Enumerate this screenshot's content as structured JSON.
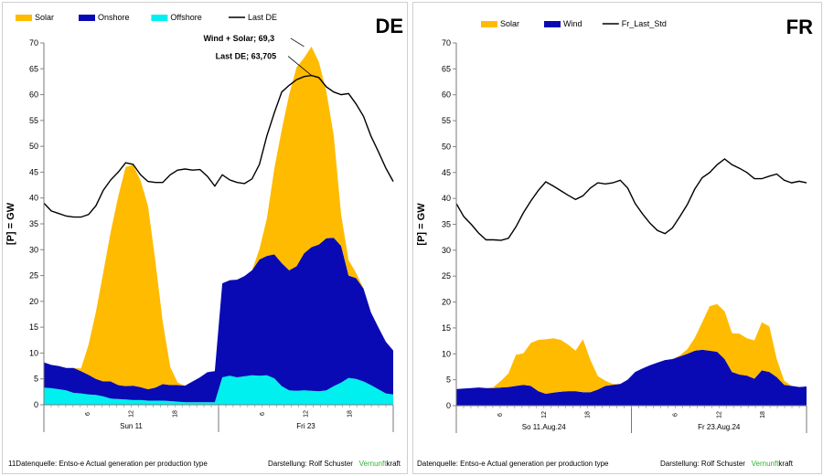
{
  "panels": {
    "de": {
      "country": "DE",
      "legend": [
        "Solar",
        "Onshore",
        "Offshore",
        "Last DE"
      ],
      "ylabel": "[P] = GW",
      "footer_source": "11Datenquelle: Entso-e  Actual generation per production type",
      "footer_credit": "Darstellung:  Rolf Schuster",
      "footer_brand_a": "Vernunft",
      "footer_brand_b": "kraft",
      "annotations": [
        "Wind + Solar; 69,3",
        "Last DE; 63,705"
      ]
    },
    "fr": {
      "country": "FR",
      "legend": [
        "Solar",
        "Wind",
        "Fr_Last_Std"
      ],
      "ylabel": "[P] = GW",
      "footer_source": "Datenquelle: Entso-e  Actual generation per production type",
      "footer_credit": "Darstellung:  Rolf Schuster",
      "footer_brand_a": "Vernunft",
      "footer_brand_b": "kraft"
    }
  },
  "colors": {
    "solar": "#ffbb00",
    "wind": "#0a0ab4",
    "offshore": "#00f0f0",
    "load": "#000000",
    "brand_green": "#2bb52b"
  },
  "chart_data": [
    {
      "type": "area",
      "title": "DE",
      "ylabel": "[P] = GW",
      "ylim": [
        0,
        70
      ],
      "yticks": [
        0,
        5,
        10,
        15,
        20,
        25,
        30,
        35,
        40,
        45,
        50,
        55,
        60,
        65,
        70
      ],
      "xtick_labels": [
        "6",
        "12",
        "18",
        "6",
        "12",
        "18"
      ],
      "day_labels": [
        "Sun 11",
        "Fri 23"
      ],
      "x": [
        0,
        1,
        2,
        3,
        4,
        5,
        6,
        7,
        8,
        9,
        10,
        11,
        12,
        13,
        14,
        15,
        16,
        17,
        18,
        19,
        20,
        21,
        22,
        23,
        24,
        25,
        26,
        27,
        28,
        29,
        30,
        31,
        32,
        33,
        34,
        35,
        36,
        37,
        38,
        39,
        40,
        41,
        42,
        43,
        44,
        45,
        46,
        47
      ],
      "stacked": true,
      "series": [
        {
          "name": "Offshore",
          "color": "#00f0f0",
          "values": [
            3.3,
            3.2,
            3.0,
            2.8,
            2.3,
            2.2,
            2.0,
            1.9,
            1.6,
            1.2,
            1.1,
            1.0,
            0.9,
            0.9,
            0.8,
            0.8,
            0.8,
            0.7,
            0.6,
            0.5,
            0.5,
            0.5,
            0.5,
            0.5,
            5.3,
            5.6,
            5.3,
            5.5,
            5.7,
            5.6,
            5.7,
            5.1,
            3.6,
            2.8,
            2.7,
            2.8,
            2.7,
            2.6,
            2.8,
            3.6,
            4.3,
            5.2,
            5.0,
            4.5,
            3.8,
            3.0,
            2.2,
            2.0
          ]
        },
        {
          "name": "Onshore",
          "color": "#0a0ab4",
          "values": [
            4.9,
            4.5,
            4.5,
            4.3,
            4.8,
            4.3,
            3.8,
            3.1,
            2.9,
            3.3,
            2.7,
            2.6,
            2.8,
            2.5,
            2.2,
            2.5,
            3.2,
            3.1,
            3.2,
            3.2,
            4.0,
            4.8,
            5.8,
            6.0,
            18.2,
            18.5,
            18.9,
            19.4,
            20.3,
            22.5,
            23.1,
            24.0,
            23.8,
            23.2,
            24.1,
            26.5,
            27.8,
            28.4,
            29.4,
            28.7,
            26.4,
            19.8,
            19.5,
            18.0,
            14.1,
            12.0,
            10.0,
            8.5
          ]
        },
        {
          "name": "Solar",
          "color": "#ffbb00",
          "values": [
            0,
            0,
            0,
            0,
            0,
            0.5,
            5.8,
            13.0,
            21.2,
            29.0,
            36.5,
            42.4,
            42.7,
            40.0,
            35.5,
            24.5,
            12.0,
            3.5,
            0.5,
            0,
            0,
            0,
            0,
            0,
            0,
            0,
            0,
            0,
            0,
            2.0,
            7.2,
            16.6,
            25.8,
            34.0,
            38.5,
            37.8,
            38.8,
            35.3,
            28.4,
            19.7,
            6.0,
            3.0,
            1.0,
            0,
            0,
            0,
            0,
            0
          ]
        }
      ],
      "lines": [
        {
          "name": "Last DE",
          "color": "#000000",
          "values": [
            39.0,
            37.5,
            37.0,
            36.5,
            36.3,
            36.3,
            36.8,
            38.5,
            41.5,
            43.5,
            45.0,
            46.8,
            46.5,
            44.5,
            43.2,
            43.0,
            43.0,
            44.5,
            45.4,
            45.6,
            45.4,
            45.5,
            44.2,
            42.3,
            44.5,
            43.5,
            43.0,
            42.8,
            43.7,
            46.5,
            52.0,
            56.5,
            60.5,
            61.8,
            62.9,
            63.5,
            63.7,
            63.3,
            61.5,
            60.5,
            60.0,
            60.2,
            58.2,
            55.8,
            52.0,
            49.0,
            45.8,
            43.2
          ]
        }
      ],
      "annotations": [
        {
          "text": "Wind + Solar; 69,3",
          "x": 35,
          "y": 69.3
        },
        {
          "text": "Last DE; 63,705",
          "x": 36,
          "y": 63.705
        }
      ]
    },
    {
      "type": "area",
      "title": "FR",
      "ylabel": "[P] = GW",
      "ylim": [
        0,
        70
      ],
      "yticks": [
        0,
        5,
        10,
        15,
        20,
        25,
        30,
        35,
        40,
        45,
        50,
        55,
        60,
        65,
        70
      ],
      "xtick_labels": [
        "6",
        "12",
        "18",
        "6",
        "12",
        "18"
      ],
      "day_labels": [
        "So 11.Aug.24",
        "Fr 23.Aug.24"
      ],
      "x": [
        0,
        1,
        2,
        3,
        4,
        5,
        6,
        7,
        8,
        9,
        10,
        11,
        12,
        13,
        14,
        15,
        16,
        17,
        18,
        19,
        20,
        21,
        22,
        23,
        24,
        25,
        26,
        27,
        28,
        29,
        30,
        31,
        32,
        33,
        34,
        35,
        36,
        37,
        38,
        39,
        40,
        41,
        42,
        43,
        44,
        45,
        46,
        47
      ],
      "stacked": true,
      "series": [
        {
          "name": "Wind",
          "color": "#0a0ab4",
          "values": [
            3.2,
            3.3,
            3.4,
            3.5,
            3.4,
            3.4,
            3.5,
            3.6,
            3.8,
            4.0,
            3.8,
            2.8,
            2.3,
            2.5,
            2.7,
            2.8,
            2.8,
            2.6,
            2.6,
            3.1,
            3.8,
            4.0,
            4.2,
            5.0,
            6.5,
            7.2,
            7.8,
            8.3,
            8.8,
            9.0,
            9.5,
            10.0,
            10.6,
            10.8,
            10.6,
            10.4,
            9.0,
            6.5,
            6.0,
            5.8,
            5.2,
            6.8,
            6.5,
            5.5,
            4.0,
            3.8,
            3.6,
            3.7
          ]
        },
        {
          "name": "Solar",
          "color": "#ffbb00",
          "values": [
            0,
            0,
            0,
            0,
            0,
            0.2,
            1.3,
            2.6,
            6.0,
            6.1,
            8.3,
            9.9,
            10.5,
            10.5,
            10.0,
            9.0,
            7.8,
            10.2,
            6.2,
            2.6,
            1.0,
            0.2,
            0,
            0,
            0,
            0,
            0,
            0,
            0,
            0,
            0.2,
            0.9,
            2.5,
            5.3,
            8.6,
            9.2,
            9.2,
            7.5,
            7.9,
            7.2,
            7.4,
            9.3,
            8.8,
            3.5,
            0.8,
            0,
            0,
            0
          ]
        }
      ],
      "lines": [
        {
          "name": "Fr_Last_Std",
          "color": "#000000",
          "values": [
            39.0,
            36.5,
            35.0,
            33.3,
            32.0,
            32.0,
            31.9,
            32.3,
            34.5,
            37.2,
            39.5,
            41.5,
            43.2,
            42.4,
            41.5,
            40.6,
            39.8,
            40.5,
            42.0,
            43.0,
            42.8,
            43.0,
            43.5,
            42.0,
            39.0,
            37.0,
            35.2,
            33.8,
            33.2,
            34.3,
            36.5,
            38.8,
            41.8,
            44.0,
            45.0,
            46.5,
            47.6,
            46.5,
            45.8,
            45.0,
            43.8,
            43.8,
            44.3,
            44.7,
            43.5,
            43.0,
            43.3,
            43.0
          ]
        }
      ]
    }
  ]
}
